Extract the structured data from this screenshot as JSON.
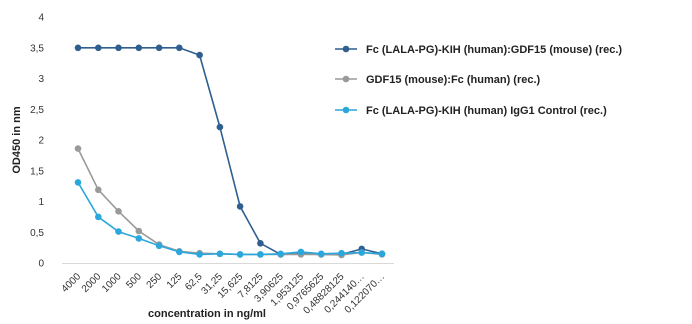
{
  "chart_data": {
    "type": "line",
    "xlabel": "concentration in ng/ml",
    "ylabel": "OD450 in nm",
    "ylim": [
      0,
      4
    ],
    "yticks": [
      "0",
      "0,5",
      "1",
      "1,5",
      "2",
      "2,5",
      "3",
      "3,5",
      "4"
    ],
    "categories": [
      "4000",
      "2000",
      "1000",
      "500",
      "250",
      "125",
      "62,5",
      "31,25",
      "15,625",
      "7,8125",
      "3,90625",
      "1,953125",
      "0,9765625",
      "0,48828125",
      "0,244140…",
      "0,122070…"
    ],
    "grid": false,
    "legend_position": "right",
    "series": [
      {
        "name": "Fc (LALA-PG)-KIH (human):GDF15 (mouse) (rec.)",
        "color": "#2f5f8f",
        "values": [
          3.5,
          3.5,
          3.5,
          3.5,
          3.5,
          3.5,
          3.38,
          2.21,
          0.92,
          0.32,
          0.14,
          0.15,
          0.14,
          0.14,
          0.23,
          0.15
        ]
      },
      {
        "name": "GDF15 (mouse):Fc (human) (rec.)",
        "color": "#9a9a9a",
        "values": [
          1.86,
          1.19,
          0.84,
          0.52,
          0.3,
          0.19,
          0.16,
          0.15,
          0.14,
          0.14,
          0.14,
          0.14,
          0.14,
          0.13,
          0.17,
          0.14
        ]
      },
      {
        "name": "Fc (LALA-PG)-KIH (human) IgG1 Control (rec.)",
        "color": "#2aa7dc",
        "values": [
          1.31,
          0.75,
          0.51,
          0.4,
          0.28,
          0.18,
          0.14,
          0.15,
          0.14,
          0.14,
          0.15,
          0.18,
          0.15,
          0.16,
          0.17,
          0.15
        ]
      }
    ]
  }
}
